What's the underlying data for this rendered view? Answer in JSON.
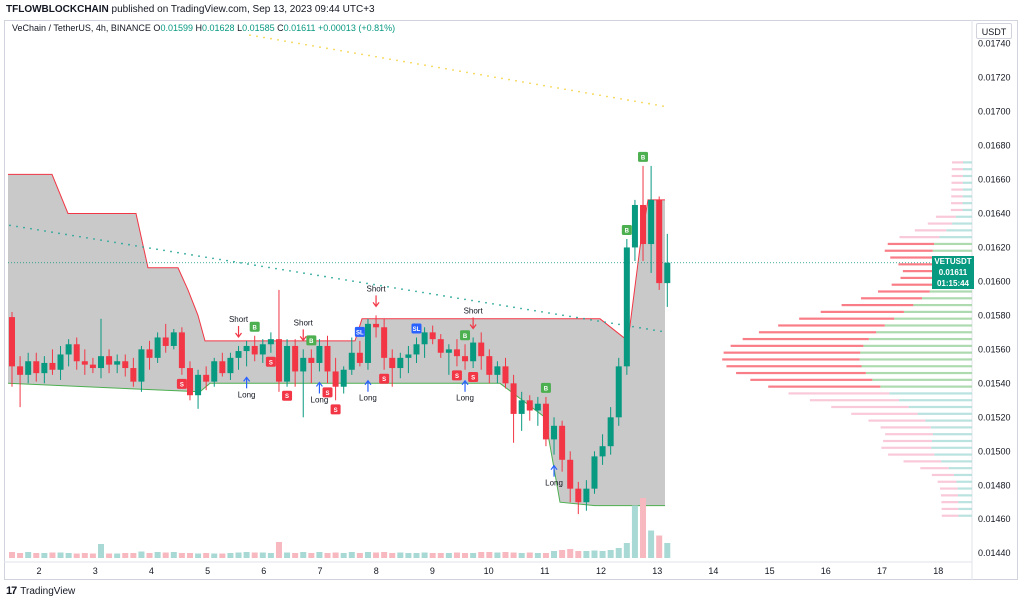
{
  "banner": {
    "author": "TFLOWBLOCKCHAIN",
    "rest": " published on TradingView.com, Sep 13, 2023 09:44 UTC+3"
  },
  "legend": {
    "symbol": "VeChain / TetherUS, 4h, BINANCE",
    "o_label": "O",
    "o": "0.01599",
    "h_label": "H",
    "h": "0.01628",
    "l_label": "L",
    "l": "0.01585",
    "c_label": "C",
    "c": "0.01611",
    "change": "+0.00013 (+0.81%)"
  },
  "currency": "USDT",
  "price_tag": {
    "symbol": "VETUSDT",
    "price": "0.01611",
    "countdown": "01:15:44"
  },
  "logo_text": "TradingView",
  "colors": {
    "up": "#089981",
    "down": "#f23645",
    "band": "#b2b2b2",
    "volume_up": "#a8d9d4",
    "volume_down": "#f7b8bf"
  },
  "chart_data": {
    "type": "candlestick",
    "symbol": "VETUSDT",
    "interval": "4h",
    "x_ticks": [
      "2",
      "3",
      "4",
      "5",
      "6",
      "7",
      "8",
      "9",
      "10",
      "11",
      "12",
      "13",
      "14",
      "15",
      "16",
      "17",
      "18"
    ],
    "y_ticks": [
      "0.01740",
      "0.01720",
      "0.01700",
      "0.01680",
      "0.01660",
      "0.01640",
      "0.01620",
      "0.01600",
      "0.01580",
      "0.01560",
      "0.01540",
      "0.01520",
      "0.01500",
      "0.01480",
      "0.01460",
      "0.01440"
    ],
    "ylim": [
      0.01436,
      0.01748
    ],
    "last_price": 0.01611,
    "candles": [
      {
        "o": 0.01579,
        "h": 0.01582,
        "l": 0.01538,
        "c": 0.0155
      },
      {
        "o": 0.0155,
        "h": 0.01556,
        "l": 0.01526,
        "c": 0.01545
      },
      {
        "o": 0.01545,
        "h": 0.01558,
        "l": 0.0154,
        "c": 0.01553
      },
      {
        "o": 0.01553,
        "h": 0.01558,
        "l": 0.01541,
        "c": 0.01546
      },
      {
        "o": 0.01546,
        "h": 0.01556,
        "l": 0.0154,
        "c": 0.01552
      },
      {
        "o": 0.01552,
        "h": 0.0156,
        "l": 0.01545,
        "c": 0.01548
      },
      {
        "o": 0.01548,
        "h": 0.01562,
        "l": 0.01542,
        "c": 0.01557
      },
      {
        "o": 0.01557,
        "h": 0.01566,
        "l": 0.0155,
        "c": 0.01563
      },
      {
        "o": 0.01563,
        "h": 0.01567,
        "l": 0.01548,
        "c": 0.01553
      },
      {
        "o": 0.01553,
        "h": 0.0156,
        "l": 0.01545,
        "c": 0.01551
      },
      {
        "o": 0.01551,
        "h": 0.01555,
        "l": 0.01546,
        "c": 0.01549
      },
      {
        "o": 0.01549,
        "h": 0.01578,
        "l": 0.01543,
        "c": 0.01556
      },
      {
        "o": 0.01556,
        "h": 0.0156,
        "l": 0.01546,
        "c": 0.01551
      },
      {
        "o": 0.01551,
        "h": 0.01557,
        "l": 0.01546,
        "c": 0.01553
      },
      {
        "o": 0.01553,
        "h": 0.01557,
        "l": 0.01544,
        "c": 0.01549
      },
      {
        "o": 0.01549,
        "h": 0.01555,
        "l": 0.01538,
        "c": 0.01541
      },
      {
        "o": 0.01541,
        "h": 0.01562,
        "l": 0.01535,
        "c": 0.0156
      },
      {
        "o": 0.0156,
        "h": 0.01565,
        "l": 0.01548,
        "c": 0.01555
      },
      {
        "o": 0.01555,
        "h": 0.0157,
        "l": 0.01552,
        "c": 0.01567
      },
      {
        "o": 0.01567,
        "h": 0.01575,
        "l": 0.01558,
        "c": 0.01562
      },
      {
        "o": 0.01562,
        "h": 0.01572,
        "l": 0.0156,
        "c": 0.0157
      },
      {
        "o": 0.0157,
        "h": 0.01573,
        "l": 0.01545,
        "c": 0.01549
      },
      {
        "o": 0.01549,
        "h": 0.01553,
        "l": 0.0153,
        "c": 0.01533
      },
      {
        "o": 0.01533,
        "h": 0.01548,
        "l": 0.01525,
        "c": 0.01545
      },
      {
        "o": 0.01545,
        "h": 0.0155,
        "l": 0.01536,
        "c": 0.01541
      },
      {
        "o": 0.01541,
        "h": 0.01555,
        "l": 0.01538,
        "c": 0.01553
      },
      {
        "o": 0.01553,
        "h": 0.01558,
        "l": 0.01544,
        "c": 0.01546
      },
      {
        "o": 0.01546,
        "h": 0.01558,
        "l": 0.01542,
        "c": 0.01555
      },
      {
        "o": 0.01555,
        "h": 0.01562,
        "l": 0.01548,
        "c": 0.01559
      },
      {
        "o": 0.01559,
        "h": 0.01565,
        "l": 0.0155,
        "c": 0.01562
      },
      {
        "o": 0.01562,
        "h": 0.01568,
        "l": 0.01553,
        "c": 0.01557
      },
      {
        "o": 0.01557,
        "h": 0.01566,
        "l": 0.01552,
        "c": 0.01563
      },
      {
        "o": 0.01563,
        "h": 0.0157,
        "l": 0.01558,
        "c": 0.01566
      },
      {
        "o": 0.01566,
        "h": 0.01595,
        "l": 0.01535,
        "c": 0.01541
      },
      {
        "o": 0.01541,
        "h": 0.01566,
        "l": 0.01538,
        "c": 0.01562
      },
      {
        "o": 0.01562,
        "h": 0.01566,
        "l": 0.01538,
        "c": 0.01547
      },
      {
        "o": 0.01547,
        "h": 0.0156,
        "l": 0.0152,
        "c": 0.01555
      },
      {
        "o": 0.01555,
        "h": 0.0156,
        "l": 0.0154,
        "c": 0.01552
      },
      {
        "o": 0.01552,
        "h": 0.01566,
        "l": 0.01547,
        "c": 0.01562
      },
      {
        "o": 0.01562,
        "h": 0.01568,
        "l": 0.0154,
        "c": 0.01547
      },
      {
        "o": 0.01547,
        "h": 0.01555,
        "l": 0.0153,
        "c": 0.01538
      },
      {
        "o": 0.01538,
        "h": 0.0155,
        "l": 0.01534,
        "c": 0.01548
      },
      {
        "o": 0.01548,
        "h": 0.01567,
        "l": 0.01545,
        "c": 0.01558
      },
      {
        "o": 0.01558,
        "h": 0.01565,
        "l": 0.0155,
        "c": 0.01552
      },
      {
        "o": 0.01552,
        "h": 0.01578,
        "l": 0.01548,
        "c": 0.01575
      },
      {
        "o": 0.01575,
        "h": 0.0158,
        "l": 0.01567,
        "c": 0.01573
      },
      {
        "o": 0.01573,
        "h": 0.01578,
        "l": 0.01548,
        "c": 0.01555
      },
      {
        "o": 0.01555,
        "h": 0.0156,
        "l": 0.01538,
        "c": 0.01549
      },
      {
        "o": 0.01549,
        "h": 0.01558,
        "l": 0.01543,
        "c": 0.01555
      },
      {
        "o": 0.01555,
        "h": 0.01562,
        "l": 0.01546,
        "c": 0.01557
      },
      {
        "o": 0.01557,
        "h": 0.01567,
        "l": 0.01552,
        "c": 0.01563
      },
      {
        "o": 0.01563,
        "h": 0.01573,
        "l": 0.01555,
        "c": 0.0157
      },
      {
        "o": 0.0157,
        "h": 0.01574,
        "l": 0.01563,
        "c": 0.01566
      },
      {
        "o": 0.01566,
        "h": 0.01569,
        "l": 0.01555,
        "c": 0.01558
      },
      {
        "o": 0.01558,
        "h": 0.01563,
        "l": 0.01545,
        "c": 0.0156
      },
      {
        "o": 0.0156,
        "h": 0.01566,
        "l": 0.0155,
        "c": 0.01556
      },
      {
        "o": 0.01556,
        "h": 0.01563,
        "l": 0.01548,
        "c": 0.01553
      },
      {
        "o": 0.01553,
        "h": 0.01567,
        "l": 0.01549,
        "c": 0.01564
      },
      {
        "o": 0.01564,
        "h": 0.0157,
        "l": 0.01548,
        "c": 0.01556
      },
      {
        "o": 0.01556,
        "h": 0.0156,
        "l": 0.0154,
        "c": 0.01545
      },
      {
        "o": 0.01545,
        "h": 0.01553,
        "l": 0.0154,
        "c": 0.0155
      },
      {
        "o": 0.0155,
        "h": 0.01555,
        "l": 0.01537,
        "c": 0.0154
      },
      {
        "o": 0.0154,
        "h": 0.01545,
        "l": 0.01505,
        "c": 0.01522
      },
      {
        "o": 0.01522,
        "h": 0.01535,
        "l": 0.01512,
        "c": 0.0153
      },
      {
        "o": 0.0153,
        "h": 0.01533,
        "l": 0.01518,
        "c": 0.01524
      },
      {
        "o": 0.01524,
        "h": 0.01532,
        "l": 0.01515,
        "c": 0.01528
      },
      {
        "o": 0.01528,
        "h": 0.01532,
        "l": 0.01503,
        "c": 0.01507
      },
      {
        "o": 0.01507,
        "h": 0.0152,
        "l": 0.01498,
        "c": 0.01515
      },
      {
        "o": 0.01515,
        "h": 0.01518,
        "l": 0.01488,
        "c": 0.01495
      },
      {
        "o": 0.01495,
        "h": 0.015,
        "l": 0.0147,
        "c": 0.01478
      },
      {
        "o": 0.01478,
        "h": 0.01482,
        "l": 0.01463,
        "c": 0.0147
      },
      {
        "o": 0.0147,
        "h": 0.01483,
        "l": 0.01465,
        "c": 0.01478
      },
      {
        "o": 0.01478,
        "h": 0.015,
        "l": 0.01475,
        "c": 0.01497
      },
      {
        "o": 0.01497,
        "h": 0.0151,
        "l": 0.01492,
        "c": 0.01503
      },
      {
        "o": 0.01503,
        "h": 0.01526,
        "l": 0.01498,
        "c": 0.0152
      },
      {
        "o": 0.0152,
        "h": 0.01555,
        "l": 0.01515,
        "c": 0.0155
      },
      {
        "o": 0.0155,
        "h": 0.01625,
        "l": 0.01545,
        "c": 0.0162
      },
      {
        "o": 0.0162,
        "h": 0.01648,
        "l": 0.01612,
        "c": 0.01645
      },
      {
        "o": 0.01645,
        "h": 0.01668,
        "l": 0.01612,
        "c": 0.01622
      },
      {
        "o": 0.01622,
        "h": 0.01668,
        "l": 0.01605,
        "c": 0.01648
      },
      {
        "o": 0.01648,
        "h": 0.0165,
        "l": 0.01595,
        "c": 0.01599
      },
      {
        "o": 0.01599,
        "h": 0.01628,
        "l": 0.01585,
        "c": 0.01611
      }
    ],
    "signals": [
      {
        "label": "Short",
        "text": "Short",
        "bar": 28,
        "type": "short"
      },
      {
        "label": "Short",
        "text": "Short",
        "bar": 36,
        "type": "short"
      },
      {
        "label": "Short",
        "text": "Short",
        "bar": 45,
        "type": "short"
      },
      {
        "label": "Short",
        "text": "Short",
        "bar": 57,
        "type": "short"
      },
      {
        "label": "Long",
        "text": "Long",
        "bar": 29,
        "type": "long"
      },
      {
        "label": "Long",
        "text": "Long",
        "bar": 38,
        "type": "long"
      },
      {
        "label": "Long",
        "text": "Long",
        "bar": 44,
        "type": "long"
      },
      {
        "label": "Long",
        "text": "Long",
        "bar": 56,
        "type": "long"
      },
      {
        "label": "Long",
        "text": "Long",
        "bar": 67,
        "type": "long"
      }
    ],
    "markers": [
      {
        "bar": 21,
        "text": "S",
        "color": "#f23645",
        "pos": "below"
      },
      {
        "bar": 30,
        "text": "B",
        "color": "#4caf50",
        "pos": "above"
      },
      {
        "bar": 32,
        "text": "S",
        "color": "#f23645",
        "pos": "below"
      },
      {
        "bar": 34,
        "text": "S",
        "color": "#f23645",
        "pos": "below"
      },
      {
        "bar": 37,
        "text": "B",
        "color": "#4caf50",
        "pos": "above"
      },
      {
        "bar": 39,
        "text": "S",
        "color": "#f23645",
        "pos": "below"
      },
      {
        "bar": 40,
        "text": "S",
        "color": "#f23645",
        "pos": "below"
      },
      {
        "bar": 43,
        "text": "SL",
        "color": "#2962ff",
        "pos": "above"
      },
      {
        "bar": 46,
        "text": "S",
        "color": "#f23645",
        "pos": "below"
      },
      {
        "bar": 50,
        "text": "SL",
        "color": "#2962ff",
        "pos": "above"
      },
      {
        "bar": 55,
        "text": "S",
        "color": "#f23645",
        "pos": "below"
      },
      {
        "bar": 56,
        "text": "B",
        "color": "#4caf50",
        "pos": "above"
      },
      {
        "bar": 57,
        "text": "S",
        "color": "#f23645",
        "pos": "below"
      },
      {
        "bar": 66,
        "text": "B",
        "color": "#4caf50",
        "pos": "above"
      },
      {
        "bar": 76,
        "text": "B",
        "color": "#4caf50",
        "pos": "above"
      },
      {
        "bar": 78,
        "text": "B",
        "color": "#4caf50",
        "pos": "above"
      }
    ],
    "volume": [
      12,
      10,
      12,
      10,
      10,
      11,
      11,
      10,
      9,
      10,
      9,
      28,
      9,
      9,
      10,
      10,
      13,
      10,
      12,
      11,
      12,
      10,
      10,
      9,
      10,
      9,
      9,
      10,
      11,
      12,
      11,
      11,
      10,
      32,
      11,
      10,
      12,
      10,
      12,
      10,
      11,
      10,
      12,
      10,
      12,
      11,
      12,
      10,
      11,
      10,
      10,
      11,
      10,
      10,
      10,
      11,
      10,
      10,
      12,
      12,
      11,
      12,
      11,
      10,
      11,
      10,
      10,
      14,
      16,
      18,
      14,
      14,
      15,
      14,
      16,
      20,
      30,
      105,
      120,
      55,
      45,
      30
    ]
  }
}
